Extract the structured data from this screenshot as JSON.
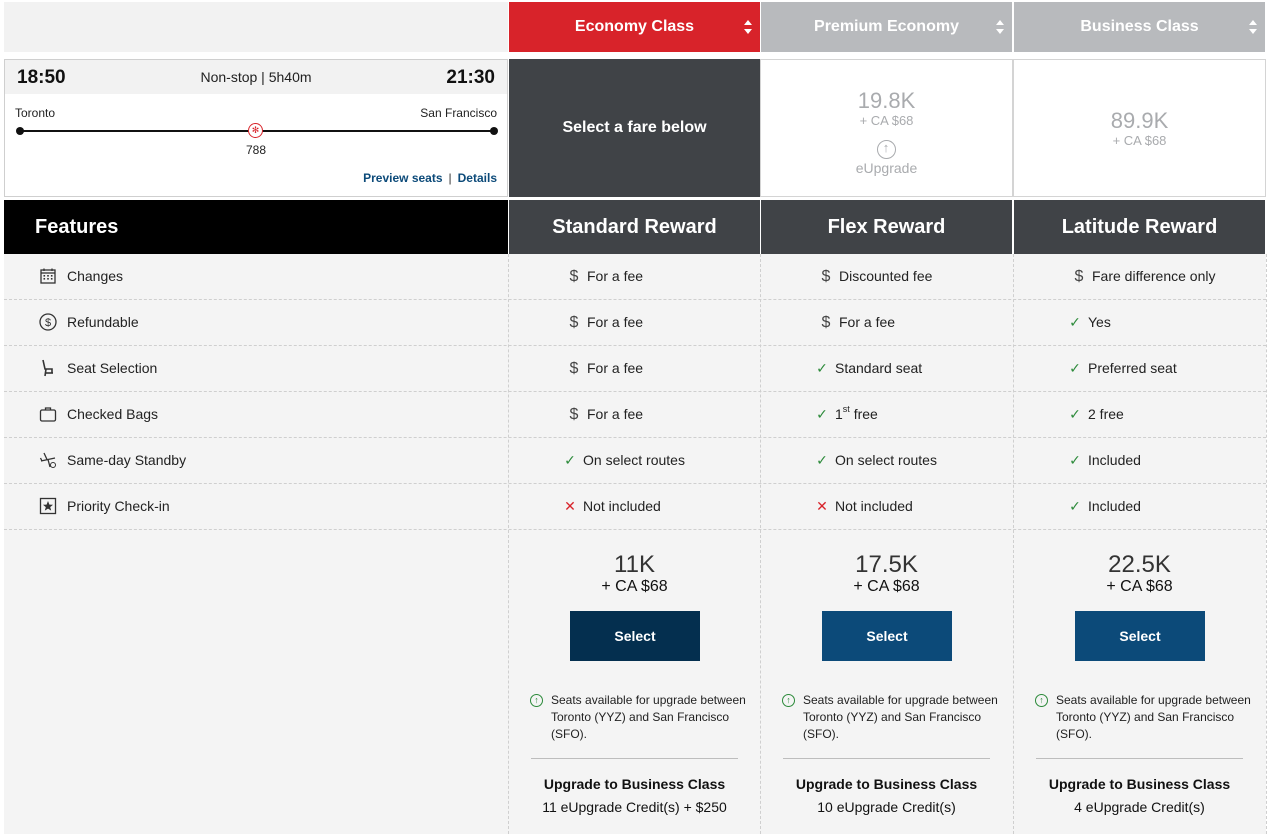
{
  "cabins": [
    {
      "label": "Economy Class",
      "active": true
    },
    {
      "label": "Premium Economy",
      "active": false
    },
    {
      "label": "Business Class",
      "active": false
    }
  ],
  "flight": {
    "depart_time": "18:50",
    "arrive_time": "21:30",
    "summary": "Non-stop | 5h40m",
    "origin": "Toronto",
    "destination": "San Francisco",
    "aircraft": "788",
    "preview_seats": "Preview seats",
    "separator": "|",
    "details": "Details"
  },
  "economy_prompt": "Select a fare below",
  "premium_price": {
    "points": "19.8K",
    "cash": "+ CA $68",
    "upgrade_label": "eUpgrade"
  },
  "business_price": {
    "points": "89.9K",
    "cash": "+ CA $68"
  },
  "features_header": "Features",
  "fares": [
    {
      "name": "Standard Reward",
      "points": "11K",
      "cash": "+ CA $68",
      "select_label": "Select",
      "button_color": "#042f4f",
      "note": "Seats available for upgrade between Toronto (YYZ) and San Francisco (SFO).",
      "upgrade_title": "Upgrade to Business Class",
      "upgrade_credits": "11 eUpgrade Credit(s) + $250"
    },
    {
      "name": "Flex Reward",
      "points": "17.5K",
      "cash": "+ CA $68",
      "select_label": "Select",
      "button_color": "#0c4a79",
      "note": "Seats available for upgrade between Toronto (YYZ) and San Francisco (SFO).",
      "upgrade_title": "Upgrade to Business Class",
      "upgrade_credits": "10 eUpgrade Credit(s)"
    },
    {
      "name": "Latitude Reward",
      "points": "22.5K",
      "cash": "+ CA $68",
      "select_label": "Select",
      "button_color": "#0c4a79",
      "note": "Seats available for upgrade between Toronto (YYZ) and San Francisco (SFO).",
      "upgrade_title": "Upgrade to Business Class",
      "upgrade_credits": "4 eUpgrade Credit(s)"
    }
  ],
  "features": [
    {
      "label": "Changes",
      "icon": "calendar-icon",
      "values": [
        {
          "sym": "dollar",
          "text": "For a fee"
        },
        {
          "sym": "dollar",
          "text": "Discounted fee"
        },
        {
          "sym": "dollar",
          "text": "Fare difference only"
        }
      ]
    },
    {
      "label": "Refundable",
      "icon": "dollar-circle-icon",
      "values": [
        {
          "sym": "dollar",
          "text": "For a fee"
        },
        {
          "sym": "dollar",
          "text": "For a fee"
        },
        {
          "sym": "check",
          "text": "Yes"
        }
      ]
    },
    {
      "label": "Seat Selection",
      "icon": "seat-icon",
      "values": [
        {
          "sym": "dollar",
          "text": "For a fee"
        },
        {
          "sym": "check",
          "text": "Standard seat"
        },
        {
          "sym": "check",
          "text": "Preferred seat"
        }
      ]
    },
    {
      "label": "Checked Bags",
      "icon": "bag-icon",
      "values": [
        {
          "sym": "dollar",
          "text": "For a fee"
        },
        {
          "sym": "check",
          "text": "1",
          "sup": "st",
          "text_after": " free"
        },
        {
          "sym": "check",
          "text": "2 free"
        }
      ]
    },
    {
      "label": "Same-day Standby",
      "icon": "plane-icon",
      "values": [
        {
          "sym": "check",
          "text": "On select routes"
        },
        {
          "sym": "check",
          "text": "On select routes"
        },
        {
          "sym": "check",
          "text": "Included"
        }
      ]
    },
    {
      "label": "Priority Check-in",
      "icon": "star-box-icon",
      "values": [
        {
          "sym": "x",
          "text": "Not included"
        },
        {
          "sym": "x",
          "text": "Not included"
        },
        {
          "sym": "check",
          "text": "Included"
        }
      ]
    }
  ],
  "colors": {
    "economy_tab": "#d8232a",
    "inactive_tab": "#b8babd",
    "dark_header": "#404347",
    "check": "#2c8a3a",
    "cross": "#d8232a"
  }
}
